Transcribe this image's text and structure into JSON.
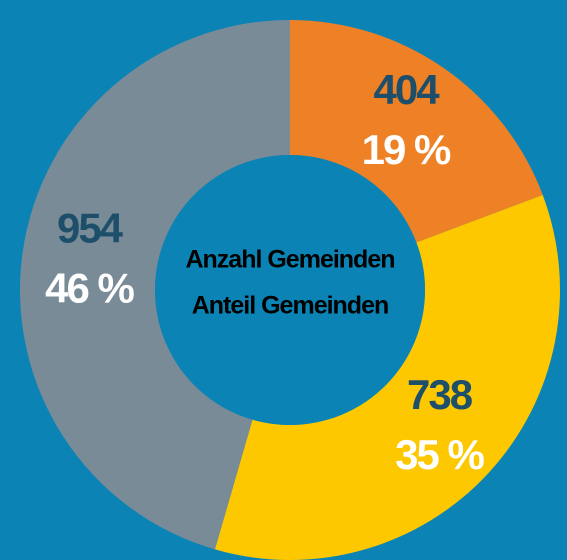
{
  "chart_data": {
    "type": "donut",
    "series": [
      {
        "name": "Anzahl Gemeinden",
        "color": "#1d4f6b",
        "values": [
          404,
          738,
          954
        ]
      },
      {
        "name": "Anteil Gemeinden",
        "color": "#ffffff",
        "values": [
          19,
          35,
          46
        ],
        "value_labels": [
          "19 %",
          "35 %",
          "46 %"
        ]
      }
    ],
    "colors": [
      "#ee8125",
      "#fdc800",
      "#7a8b98"
    ],
    "background": "#0b84b5"
  }
}
